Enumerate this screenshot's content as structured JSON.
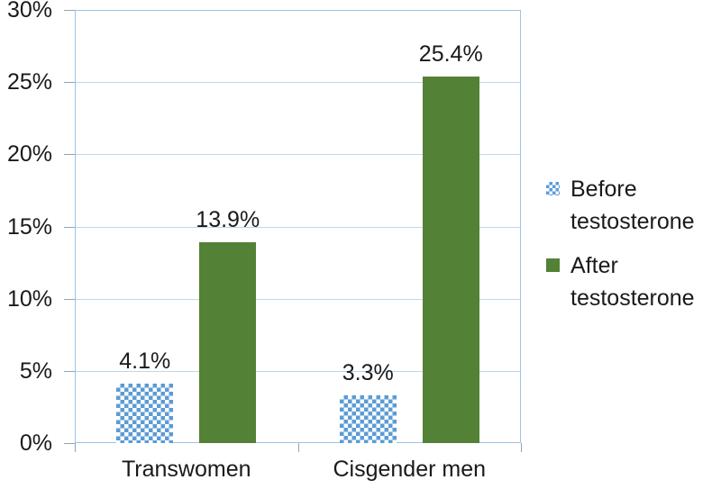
{
  "chart_data": {
    "type": "bar",
    "title": "",
    "categories": [
      "Transwomen",
      "Cisgender men"
    ],
    "series": [
      {
        "name": "Before testosterone",
        "legend_lines": [
          "Before",
          "testosterone"
        ],
        "values": [
          4.1,
          3.3
        ],
        "data_labels": [
          "4.1%",
          "3.3%"
        ],
        "fill": "pattern-checker",
        "color": "#5B9BD5"
      },
      {
        "name": "After testosterone",
        "legend_lines": [
          "After",
          "testosterone"
        ],
        "values": [
          13.9,
          25.4
        ],
        "data_labels": [
          "13.9%",
          "25.4%"
        ],
        "fill": "solid",
        "color": "#538135"
      }
    ],
    "y_axis": {
      "min": 0,
      "max": 30,
      "step": 5,
      "tick_labels": [
        "0%",
        "5%",
        "10%",
        "15%",
        "20%",
        "25%",
        "30%"
      ]
    },
    "x_axis_label": "",
    "y_axis_label": "",
    "grid": true,
    "legend_position": "right"
  },
  "colors": {
    "before_pattern_blue": "#5B9BD5",
    "after_solid_green": "#538135",
    "gridline": "#BDD7EE",
    "axis_border": "#9DC3E6",
    "tick": "#95A3B2",
    "text": "#1a1a1a"
  }
}
